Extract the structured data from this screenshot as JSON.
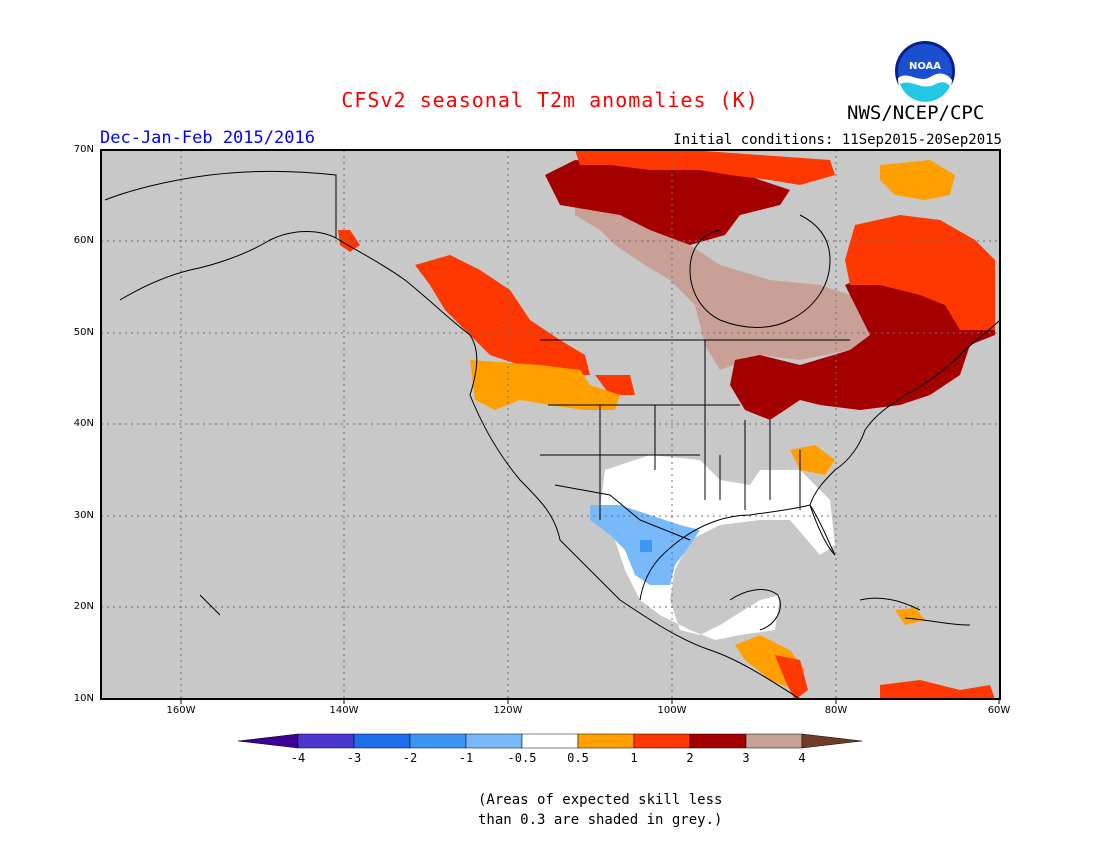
{
  "header": {
    "title": "CFSv2 seasonal T2m anomalies (K)",
    "agency": "NWS/NCEP/CPC",
    "period": "Dec-Jan-Feb 2015/2016",
    "init_conditions": "Initial conditions: 11Sep2015-20Sep2015",
    "logo_text": "NOAA"
  },
  "colors": {
    "title": "#ff0000",
    "period": "#0000ff",
    "background_grey": "#c8c8c8",
    "land_line": "#000000",
    "scale": [
      "#3c0096",
      "#4b37cd",
      "#1e6eeb",
      "#3c96f5",
      "#78b9fa",
      "#ffffff",
      "#ffa000",
      "#ff3700",
      "#a50000",
      "#c8a096",
      "#6e3c28"
    ]
  },
  "map": {
    "lon_labels": [
      "160W",
      "140W",
      "120W",
      "100W",
      "80W",
      "60W"
    ],
    "lat_labels": [
      "70N",
      "60N",
      "50N",
      "40N",
      "30N",
      "20N",
      "10N"
    ]
  },
  "colorbar": {
    "ticks": [
      "-4",
      "-3",
      "-2",
      "-1",
      "-0.5",
      "0.5",
      "1",
      "2",
      "3",
      "4"
    ]
  },
  "footnote": {
    "line1": "(Areas of expected skill less",
    "line2": "than 0.3 are shaded in grey.)"
  }
}
